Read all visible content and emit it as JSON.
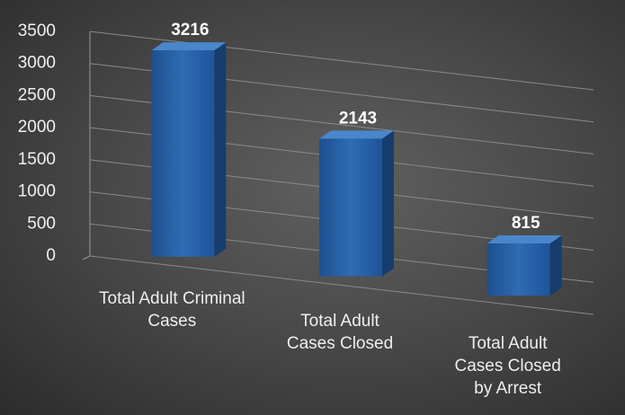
{
  "chart_data": {
    "type": "bar3d",
    "categories": [
      "Total Adult Criminal Cases",
      "Total Adult Cases Closed",
      "Total Adult Cases Closed by Arrest"
    ],
    "values": [
      3216,
      2143,
      815
    ],
    "color": "#2a63a8",
    "ylim": [
      0,
      3500
    ],
    "yticks": [
      0,
      500,
      1000,
      1500,
      2000,
      2500,
      3000,
      3500
    ],
    "grid": true
  }
}
